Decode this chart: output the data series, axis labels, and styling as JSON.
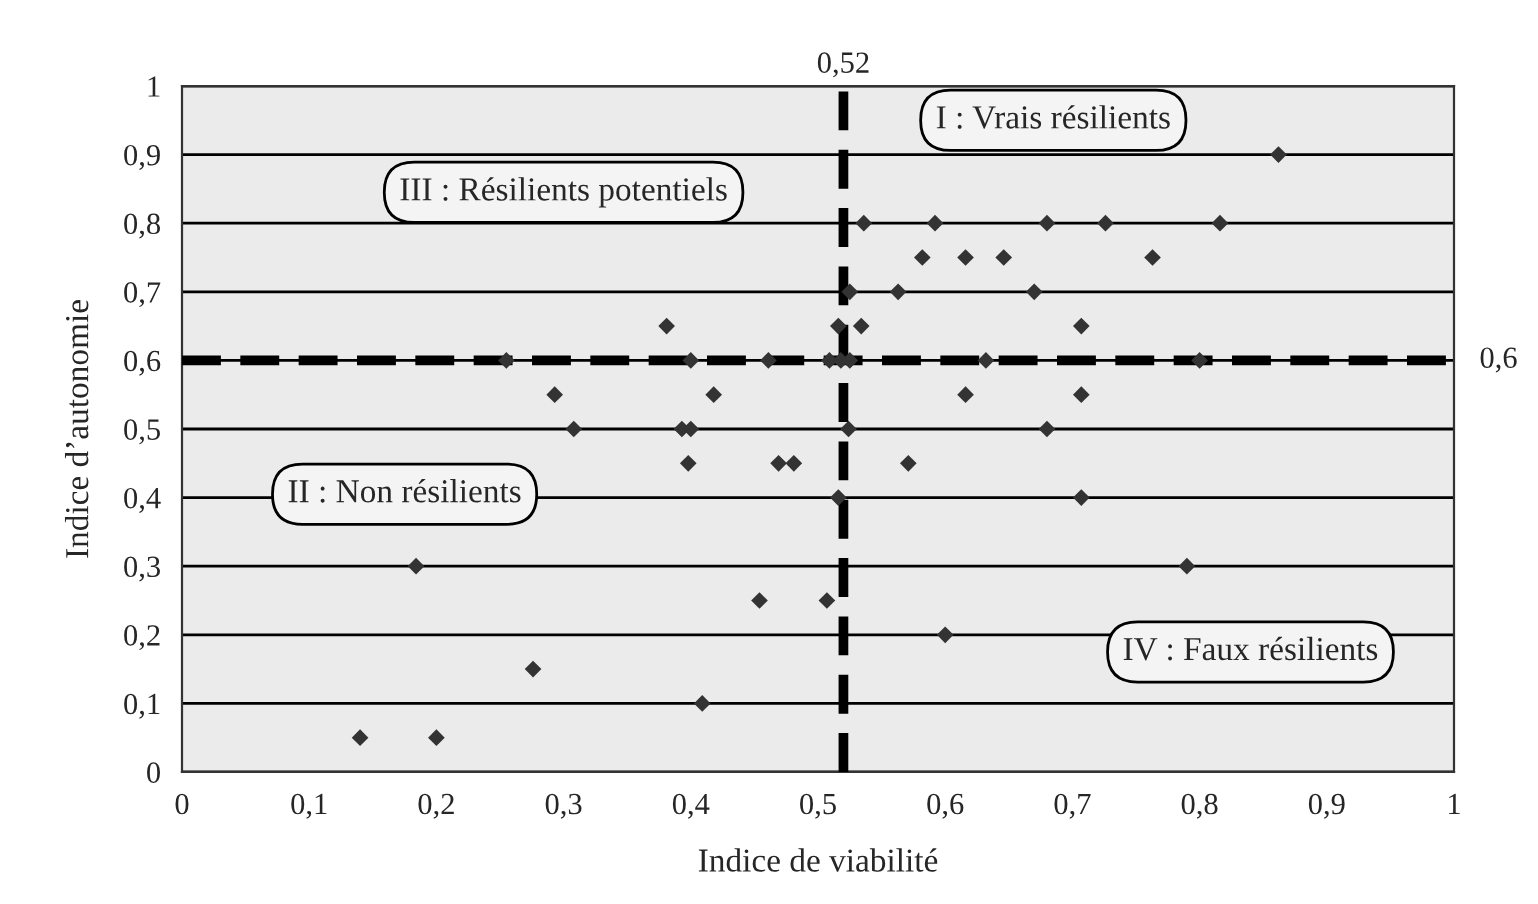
{
  "chart_data": {
    "type": "scatter",
    "xlabel": "Indice de viabilité",
    "ylabel": "Indice d’autonomie",
    "x": [
      0.255,
      0.293,
      0.308,
      0.184,
      0.276,
      0.14,
      0.2,
      0.536,
      0.592,
      0.582,
      0.616,
      0.646,
      0.525,
      0.563,
      0.67,
      0.381,
      0.516,
      0.534,
      0.4,
      0.461,
      0.509,
      0.518,
      0.525,
      0.632,
      0.418,
      0.616,
      0.393,
      0.4,
      0.524,
      0.398,
      0.469,
      0.481,
      0.571,
      0.516,
      0.454,
      0.507,
      0.6,
      0.409,
      0.862,
      0.68,
      0.726,
      0.816,
      0.763,
      0.707,
      0.8,
      0.707,
      0.68,
      0.707,
      0.79
    ],
    "series": [
      {
        "color": "#333333",
        "values": [
          0.6,
          0.55,
          0.5,
          0.3,
          0.15,
          0.05,
          0.05,
          0.8,
          0.8,
          0.75,
          0.75,
          0.75,
          0.7,
          0.7,
          0.7,
          0.65,
          0.65,
          0.65,
          0.6,
          0.6,
          0.6,
          0.6,
          0.6,
          0.6,
          0.55,
          0.55,
          0.5,
          0.5,
          0.5,
          0.45,
          0.45,
          0.45,
          0.45,
          0.4,
          0.25,
          0.25,
          0.2,
          0.1,
          0.9,
          0.8,
          0.8,
          0.8,
          0.75,
          0.65,
          0.6,
          0.55,
          0.5,
          0.4,
          0.3
        ]
      }
    ],
    "marker": "diamond",
    "grid": "y",
    "xlim": [
      0,
      1
    ],
    "ylim": [
      0,
      1
    ],
    "xticks": [
      0,
      {
        "value": 0.1,
        "label": "0,1"
      },
      {
        "value": 0.2,
        "label": "0,2"
      },
      {
        "value": 0.3,
        "label": "0,3"
      },
      {
        "value": 0.4,
        "label": "0,4"
      },
      {
        "value": 0.5,
        "label": "0,5"
      },
      {
        "value": 0.6,
        "label": "0,6"
      },
      {
        "value": 0.7,
        "label": "0,7"
      },
      {
        "value": 0.8,
        "label": "0,8"
      },
      {
        "value": 0.9,
        "label": "0,9"
      },
      1
    ],
    "yticks": [
      0,
      {
        "value": 0.1,
        "label": "0,1"
      },
      {
        "value": 0.2,
        "label": "0,2"
      },
      {
        "value": 0.3,
        "label": "0,3"
      },
      {
        "value": 0.4,
        "label": "0,4"
      },
      {
        "value": 0.5,
        "label": "0,5"
      },
      {
        "value": 0.6,
        "label": "0,6"
      },
      {
        "value": 0.7,
        "label": "0,7"
      },
      {
        "value": 0.8,
        "label": "0,8"
      },
      {
        "value": 0.9,
        "label": "0,9"
      },
      1
    ],
    "ref_lines": [
      {
        "axis": "x",
        "value": 0.52,
        "label": "0,52",
        "color": "#000000",
        "line_style": "dashed"
      },
      {
        "axis": "y",
        "value": 0.6,
        "label": "0,6",
        "color": "#000000",
        "line_style": "dashed"
      }
    ],
    "annotations": [
      "I : Vrais résilients",
      "III : Résilients potentiels",
      "II : Non résilients",
      "IV : Faux résilients"
    ]
  }
}
